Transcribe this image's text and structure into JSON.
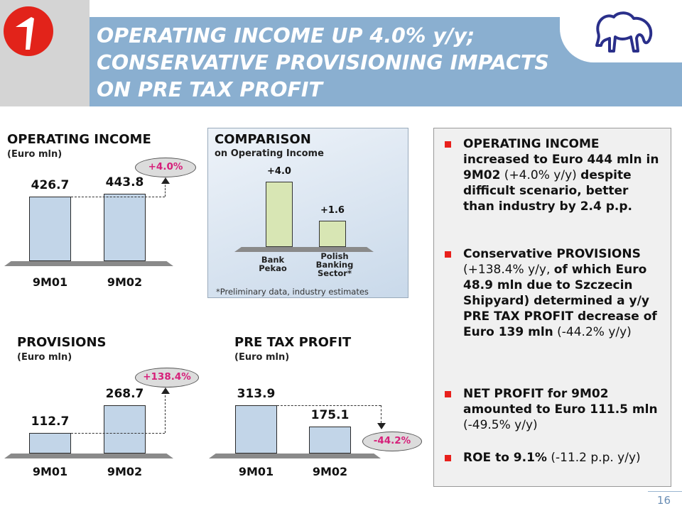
{
  "header": {
    "title_lines": [
      "OPERATING INCOME UP 4.0% y/y;",
      "CONSERVATIVE PROVISIONING IMPACTS",
      "ON PRE TAX PROFIT"
    ]
  },
  "colors": {
    "header_band": "#8aafd0",
    "bar": "#c2d5e8",
    "comparison_bar": "#d8e6b4",
    "change_text": "#d6207a",
    "bullet": "#e8201c"
  },
  "operating_income": {
    "title": "OPERATING INCOME",
    "unit": "(Euro mln)",
    "change": "+4.0%"
  },
  "comparison": {
    "title": "COMPARISON",
    "subtitle": "on Operating Income",
    "footnote": "*Preliminary data, industry estimates"
  },
  "provisions": {
    "title": "PROVISIONS",
    "unit": "(Euro mln)",
    "change": "+138.4%"
  },
  "pretax": {
    "title": "PRE TAX PROFIT",
    "unit": "(Euro mln)",
    "change": "-44.2%"
  },
  "chart_data": [
    {
      "type": "bar",
      "title": "OPERATING INCOME",
      "ylabel": "(Euro mln)",
      "categories": [
        "9M01",
        "9M02"
      ],
      "values": [
        426.7,
        443.8
      ],
      "value_labels": [
        "426.7",
        "443.8"
      ],
      "ylim": [
        0,
        500
      ],
      "annotation": "+4.0%"
    },
    {
      "type": "bar",
      "title": "COMPARISON",
      "subtitle": "on Operating Income",
      "categories": [
        "Bank Pekao",
        "Polish Banking Sector*"
      ],
      "values": [
        4.0,
        1.6
      ],
      "value_labels": [
        "+4.0",
        "+1.6"
      ],
      "ylim": [
        0,
        4.3
      ]
    },
    {
      "type": "bar",
      "title": "PROVISIONS",
      "ylabel": "(Euro mln)",
      "categories": [
        "9M01",
        "9M02"
      ],
      "values": [
        112.7,
        268.7
      ],
      "value_labels": [
        "112.7",
        "268.7"
      ],
      "ylim": [
        0,
        320
      ],
      "annotation": "+138.4%"
    },
    {
      "type": "bar",
      "title": "PRE TAX PROFIT",
      "ylabel": "(Euro mln)",
      "categories": [
        "9M01",
        "9M02"
      ],
      "values": [
        313.9,
        175.1
      ],
      "value_labels": [
        "313.9",
        "175.1"
      ],
      "ylim": [
        0,
        320
      ],
      "annotation": "-44.2%"
    }
  ],
  "bullets": [
    [
      {
        "t": "OPERATING INCOME increased to Euro 444 mln in 9M02",
        "b": true
      },
      {
        "t": " (+4.0% y/y) ",
        "b": false
      },
      {
        "t": "despite difficult scenario, better than industry by 2.4 p.p.",
        "b": true
      }
    ],
    [
      {
        "t": "Conservative PROVISIONS",
        "b": true
      },
      {
        "t": " (+138.4% y/y, ",
        "b": false
      },
      {
        "t": "of which Euro 48.9 mln due to Szczecin Shipyard) determined a y/y PRE TAX PROFIT decrease of Euro 139 mln",
        "b": true
      },
      {
        "t": " (-44.2% y/y)",
        "b": false
      }
    ],
    [
      {
        "t": "NET PROFIT for 9M02 amounted to Euro 111.5 mln",
        "b": true
      },
      {
        "t": " (-49.5% y/y)",
        "b": false
      }
    ],
    [
      {
        "t": "ROE to 9.1%",
        "b": true
      },
      {
        "t": " (-11.2 p.p. y/y)",
        "b": false
      }
    ]
  ],
  "page_number": "16"
}
